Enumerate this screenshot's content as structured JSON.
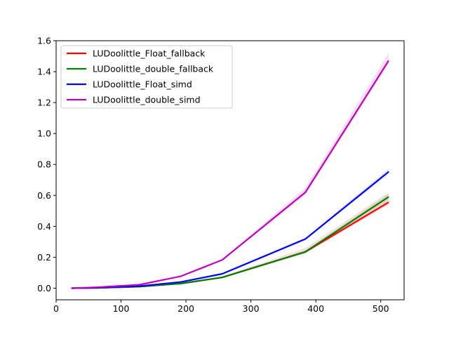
{
  "chart_data": {
    "type": "line",
    "title": "",
    "xlabel": "",
    "ylabel": "",
    "x": [
      24,
      64,
      128,
      192,
      256,
      384,
      512
    ],
    "xlim": [
      0,
      536
    ],
    "ylim": [
      -0.075,
      1.6
    ],
    "xticks": [
      0,
      100,
      200,
      300,
      400,
      500
    ],
    "xtick_labels": [
      "0",
      "100",
      "200",
      "300",
      "400",
      "500"
    ],
    "yticks": [
      0.0,
      0.2,
      0.4,
      0.6,
      0.8,
      1.0,
      1.2,
      1.4,
      1.6
    ],
    "ytick_labels": [
      "0.0",
      "0.2",
      "0.4",
      "0.6",
      "0.8",
      "1.0",
      "1.2",
      "1.4",
      "1.6"
    ],
    "grid": false,
    "legend_position": "top-left",
    "series": [
      {
        "name": "LUDoolittle_Float_fallback",
        "color": "#ff0000",
        "values": [
          0.0,
          0.002,
          0.01,
          0.03,
          0.07,
          0.235,
          0.555
        ],
        "band_low": [
          0.0,
          0.0015,
          0.008,
          0.027,
          0.066,
          0.225,
          0.54
        ],
        "band_high": [
          0.0005,
          0.0025,
          0.012,
          0.033,
          0.075,
          0.26,
          0.62
        ]
      },
      {
        "name": "LUDoolittle_double_fallback",
        "color": "#008000",
        "values": [
          0.0,
          0.002,
          0.01,
          0.03,
          0.07,
          0.235,
          0.59
        ],
        "band_low": [
          0.0,
          0.0015,
          0.008,
          0.027,
          0.066,
          0.225,
          0.57
        ],
        "band_high": [
          0.0005,
          0.0025,
          0.012,
          0.033,
          0.075,
          0.245,
          0.61
        ]
      },
      {
        "name": "LUDoolittle_Float_simd",
        "color": "#0000ff",
        "values": [
          0.0,
          0.003,
          0.013,
          0.04,
          0.093,
          0.318,
          0.752
        ],
        "band_low": [
          0.0,
          0.0025,
          0.011,
          0.037,
          0.089,
          0.31,
          0.74
        ],
        "band_high": [
          0.0005,
          0.0035,
          0.015,
          0.043,
          0.097,
          0.326,
          0.77
        ]
      },
      {
        "name": "LUDoolittle_double_simd",
        "color": "#bf00bf",
        "values": [
          0.0,
          0.006,
          0.022,
          0.077,
          0.183,
          0.62,
          1.47
        ],
        "band_low": [
          0.0,
          0.005,
          0.019,
          0.073,
          0.178,
          0.605,
          1.45
        ],
        "band_high": [
          0.001,
          0.007,
          0.025,
          0.081,
          0.188,
          0.65,
          1.52
        ]
      }
    ]
  }
}
